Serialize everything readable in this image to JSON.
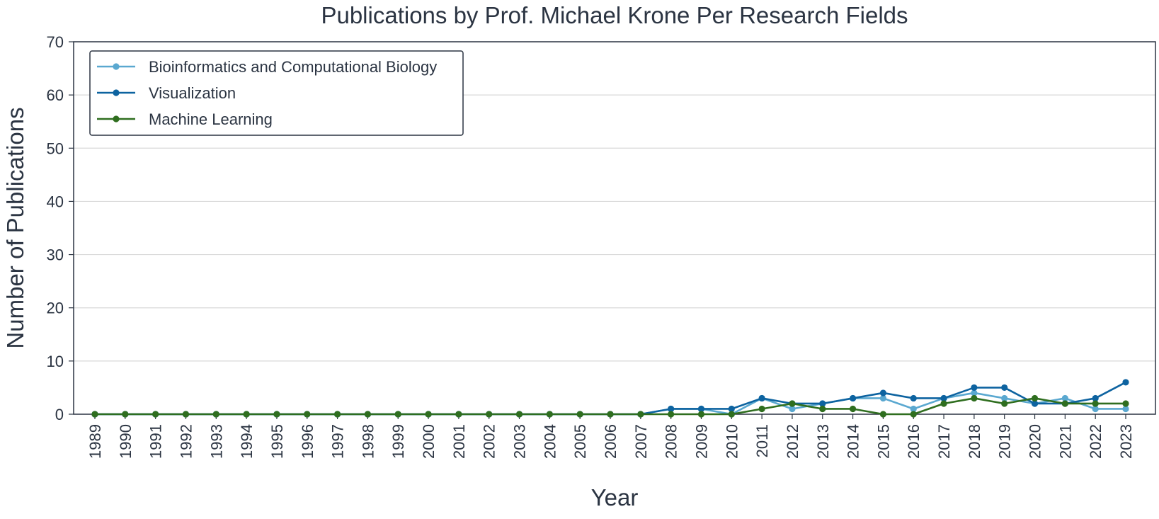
{
  "chart_data": {
    "type": "line",
    "title": "Publications by Prof. Michael Krone Per Research Fields",
    "xlabel": "Year",
    "ylabel": "Number of Publications",
    "ylim": [
      0,
      70
    ],
    "yticks": [
      0,
      10,
      20,
      30,
      40,
      50,
      60,
      70
    ],
    "grid": "horizontal",
    "legend_position": "top-left",
    "categories": [
      "1989",
      "1990",
      "1991",
      "1992",
      "1993",
      "1994",
      "1995",
      "1996",
      "1997",
      "1998",
      "1999",
      "2000",
      "2001",
      "2002",
      "2003",
      "2004",
      "2005",
      "2006",
      "2007",
      "2008",
      "2009",
      "2010",
      "2011",
      "2012",
      "2013",
      "2014",
      "2015",
      "2016",
      "2017",
      "2018",
      "2019",
      "2020",
      "2021",
      "2022",
      "2023"
    ],
    "series": [
      {
        "name": "Bioinformatics and Computational Biology",
        "color": "#5aa8d0",
        "values": [
          0,
          0,
          0,
          0,
          0,
          0,
          0,
          0,
          0,
          0,
          0,
          0,
          0,
          0,
          0,
          0,
          0,
          0,
          0,
          1,
          1,
          0,
          3,
          1,
          2,
          3,
          3,
          1,
          3,
          4,
          3,
          2,
          3,
          1,
          1
        ]
      },
      {
        "name": "Visualization",
        "color": "#0d63a0",
        "values": [
          0,
          0,
          0,
          0,
          0,
          0,
          0,
          0,
          0,
          0,
          0,
          0,
          0,
          0,
          0,
          0,
          0,
          0,
          0,
          1,
          1,
          1,
          3,
          2,
          2,
          3,
          4,
          3,
          3,
          5,
          5,
          2,
          2,
          3,
          6
        ]
      },
      {
        "name": "Machine Learning",
        "color": "#2f6e1f",
        "values": [
          0,
          0,
          0,
          0,
          0,
          0,
          0,
          0,
          0,
          0,
          0,
          0,
          0,
          0,
          0,
          0,
          0,
          0,
          0,
          0,
          0,
          0,
          1,
          2,
          1,
          1,
          0,
          0,
          2,
          3,
          2,
          3,
          2,
          2,
          2
        ]
      }
    ]
  }
}
